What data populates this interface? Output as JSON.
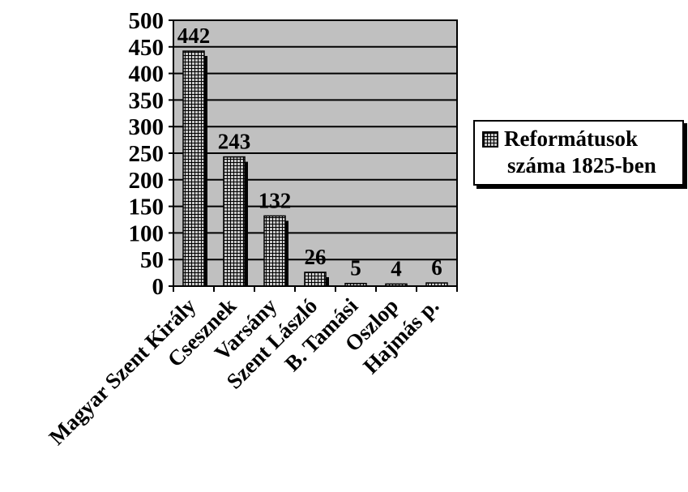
{
  "chart_data": {
    "type": "bar",
    "categories": [
      "Magyar Szent Király",
      "Csesznek",
      "Varsány",
      "Szent László",
      "B. Tamási",
      "Oszlop",
      "Hajmás p."
    ],
    "series": [
      {
        "name": "Reformátusok száma 1825-ben",
        "values": [
          442,
          243,
          132,
          26,
          5,
          4,
          6
        ]
      }
    ],
    "data_labels": [
      "442",
      "243",
      "132",
      "26",
      "5",
      "4",
      "6"
    ],
    "y_ticks": [
      0,
      50,
      100,
      150,
      200,
      250,
      300,
      350,
      400,
      450,
      500
    ],
    "ylim": [
      0,
      500
    ],
    "grid": true,
    "legend_position": "right",
    "colors": {
      "plot_background": "#c0c0c0",
      "bar_fill": "#c8c8c8",
      "pattern": "#000000"
    }
  },
  "legend": {
    "line1": "Reformátusok",
    "line2": "száma 1825-ben"
  }
}
